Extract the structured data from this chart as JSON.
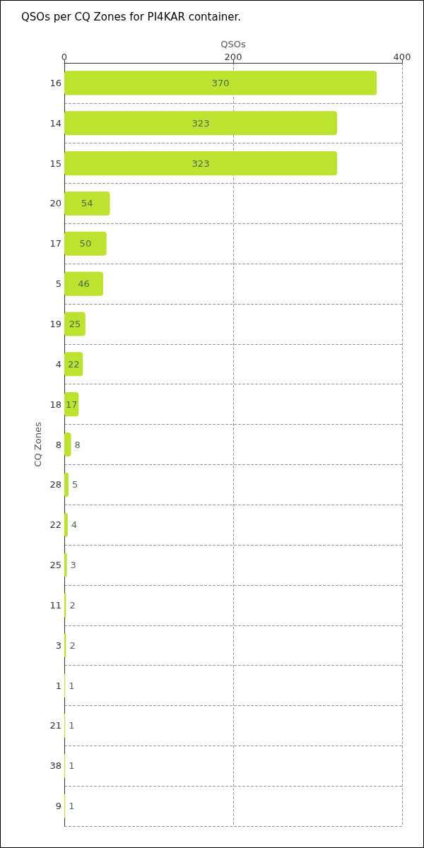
{
  "chart_data": {
    "type": "bar",
    "orientation": "horizontal",
    "title": "QSOs per CQ Zones for PI4KAR container.",
    "xlabel": "QSOs",
    "ylabel": "CQ Zones",
    "categories": [
      "16",
      "14",
      "15",
      "20",
      "17",
      "5",
      "19",
      "4",
      "18",
      "8",
      "28",
      "22",
      "25",
      "11",
      "3",
      "1",
      "21",
      "38",
      "9"
    ],
    "series": [
      {
        "color": "#bde22f",
        "values": [
          370,
          323,
          323,
          54,
          50,
          46,
          25,
          22,
          17,
          8,
          5,
          4,
          3,
          2,
          2,
          1,
          1,
          1,
          1
        ]
      }
    ],
    "xlim": [
      0,
      400
    ],
    "xticks": [
      0,
      200,
      400
    ],
    "grid": true,
    "data_labels": true
  }
}
